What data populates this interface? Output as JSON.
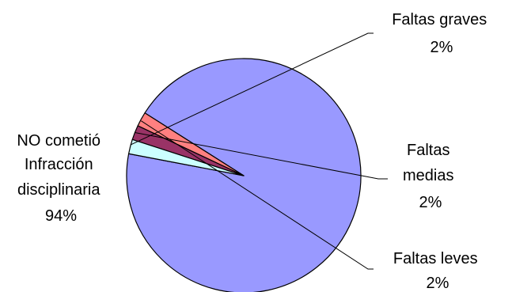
{
  "chart_data": {
    "type": "pie",
    "title": "",
    "slices": [
      {
        "name_lines": [
          "NO cometió",
          "Infracción",
          "disciplinaria"
        ],
        "percent_label": "94%",
        "value": 94,
        "color": "#9999ff"
      },
      {
        "name_lines": [
          "Faltas leves"
        ],
        "percent_label": "2%",
        "value": 2,
        "color": "#ff8080"
      },
      {
        "name_lines": [
          "Faltas",
          "medias"
        ],
        "percent_label": "2%",
        "value": 2,
        "color": "#993366"
      },
      {
        "name_lines": [
          "Faltas graves"
        ],
        "percent_label": "2%",
        "value": 2,
        "color": "#ccffff"
      }
    ],
    "legend": "none",
    "data_labels": "outside with leader lines",
    "outline_color": "#000000"
  }
}
